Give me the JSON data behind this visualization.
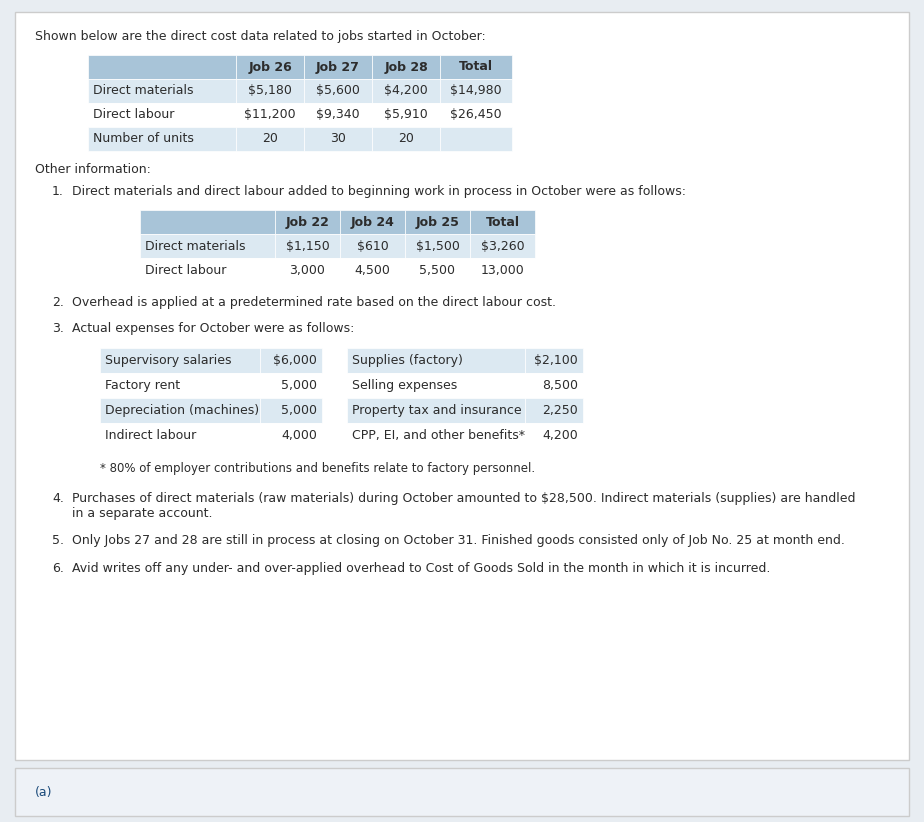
{
  "bg_color": "#e8edf2",
  "content_bg": "#ffffff",
  "bottom_bg": "#eef2f7",
  "header_color": "#a8c4d8",
  "row_alt_color": "#dce9f2",
  "row_white": "#ffffff",
  "intro_text": "Shown below are the direct cost data related to jobs started in October:",
  "table1_headers": [
    "",
    "Job 26",
    "Job 27",
    "Job 28",
    "Total"
  ],
  "table1_rows": [
    [
      "Direct materials",
      "$5,180",
      "$5,600",
      "$4,200",
      "$14,980"
    ],
    [
      "Direct labour",
      "$11,200",
      "$9,340",
      "$5,910",
      "$26,450"
    ],
    [
      "Number of units",
      "20",
      "30",
      "20",
      ""
    ]
  ],
  "other_info_label": "Other information:",
  "item1_text": "Direct materials and direct labour added to beginning work in process in October were as follows:",
  "table2_headers": [
    "",
    "Job 22",
    "Job 24",
    "Job 25",
    "Total"
  ],
  "table2_rows": [
    [
      "Direct materials",
      "$1,150",
      "$610",
      "$1,500",
      "$3,260"
    ],
    [
      "Direct labour",
      "3,000",
      "4,500",
      "5,500",
      "13,000"
    ]
  ],
  "item2_text": "Overhead is applied at a predetermined rate based on the direct labour cost.",
  "item3_text": "Actual expenses for October were as follows:",
  "expenses_left": [
    [
      "Supervisory salaries",
      "$6,000"
    ],
    [
      "Factory rent",
      "5,000"
    ],
    [
      "Depreciation (machines)",
      "5,000"
    ],
    [
      "Indirect labour",
      "4,000"
    ]
  ],
  "expenses_right": [
    [
      "Supplies (factory)",
      "$2,100"
    ],
    [
      "Selling expenses",
      "8,500"
    ],
    [
      "Property tax and insurance",
      "2,250"
    ],
    [
      "CPP, EI, and other benefits*",
      "4,200"
    ]
  ],
  "footnote_text": "* 80% of employer contributions and benefits relate to factory personnel.",
  "item4_text": "Purchases of direct materials (raw materials) during October amounted to $28,500. Indirect materials (supplies) are handled\nin a separate account.",
  "item5_text": "Only Jobs 27 and 28 are still in process at closing on October 31. Finished goods consisted only of Job No. 25 at month end.",
  "item6_text": "Avid writes off any under- and over-applied overhead to Cost of Goods Sold in the month in which it is incurred.",
  "bottom_label": "(a)",
  "text_color": "#2c2c2c",
  "blue_text": "#1a4a7a",
  "font_size": 9.0
}
